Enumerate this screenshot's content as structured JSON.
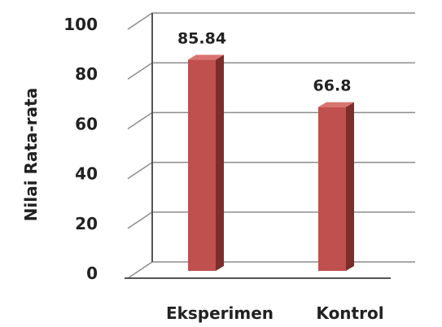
{
  "chart_data": {
    "type": "bar",
    "categories": [
      "Eksperimen",
      "Kontrol"
    ],
    "values": [
      85.84,
      66.8
    ],
    "data_labels": [
      "85.84",
      "66.8"
    ],
    "ylabel": "Nilai Rata-rata",
    "ylim": [
      0,
      100
    ],
    "yticks": [
      0,
      20,
      40,
      60,
      80,
      100
    ],
    "grid": true,
    "bar_color": "#c0504d"
  }
}
